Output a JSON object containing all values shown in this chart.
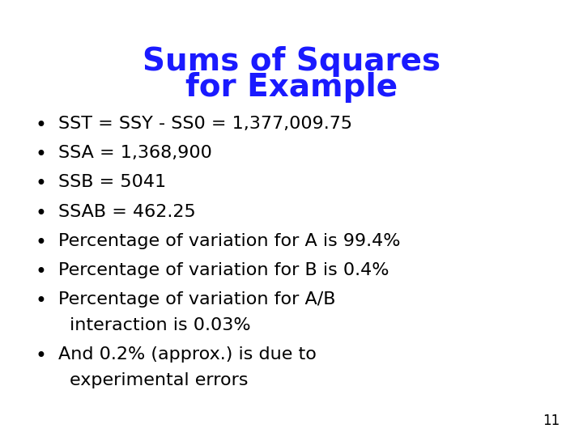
{
  "title_line1": "Sums of Squares",
  "title_line2": "for Example",
  "title_color": "#1a1aff",
  "title_fontsize": 28,
  "bullet_color": "#000000",
  "bullet_fontsize": 16,
  "background_color": "#ffffff",
  "page_number": "11",
  "bullets": [
    [
      "SST = SSY - SS0 = 1,377,009.75"
    ],
    [
      "SSA = 1,368,900"
    ],
    [
      "SSB = 5041"
    ],
    [
      "SSAB = 462.25"
    ],
    [
      "Percentage of variation for A is 99.4%"
    ],
    [
      "Percentage of variation for B is 0.4%"
    ],
    [
      "Percentage of variation for A/B",
      "interaction is 0.03%"
    ],
    [
      "And 0.2% (approx.) is due to",
      "experimental errors"
    ]
  ]
}
